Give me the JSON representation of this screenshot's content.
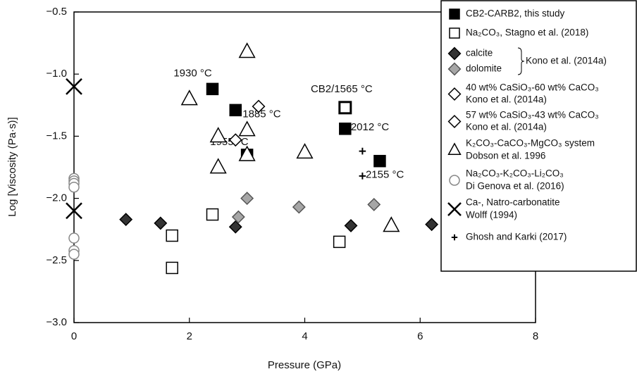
{
  "chart_data": {
    "type": "scatter",
    "x_label": "Pressure (GPa)",
    "y_label": "Log [Viscosity (Pa·s)]",
    "xlim": [
      0,
      8
    ],
    "ylim": [
      -3.0,
      -0.5
    ],
    "xticks": [
      0,
      2,
      4,
      6,
      8
    ],
    "yticks": [
      {
        "value": -3.0,
        "label": "−3.0"
      },
      {
        "value": -2.5,
        "label": "−2.5"
      },
      {
        "value": -2.0,
        "label": "−2.0"
      },
      {
        "value": -1.5,
        "label": "−1.5"
      },
      {
        "value": -1.0,
        "label": "−1.0"
      },
      {
        "value": -0.5,
        "label": "−0.5"
      }
    ],
    "legend_group_label": "Kono et al. (2014a)",
    "series": [
      {
        "name": [
          "CB2-CARB2, this study"
        ],
        "marker": "square",
        "color": "#000000",
        "filled": true,
        "x": [
          2.4,
          2.8,
          3.0,
          4.7,
          5.3,
          4.7
        ],
        "values": [
          -1.12,
          -1.29,
          -1.65,
          -1.44,
          -1.7,
          -1.27
        ],
        "open": [
          false,
          false,
          false,
          false,
          false,
          true
        ],
        "labels": [
          "1930 °C",
          "1885 °C",
          "1955 °C",
          "2012 °C",
          "2155 °C",
          "CB2/1565 °C"
        ]
      },
      {
        "name": [
          "Na₂CO₃, Stagno et al. (2018)"
        ],
        "marker": "square",
        "color": "#000000",
        "filled": false,
        "x": [
          1.7,
          1.7,
          2.4,
          4.6
        ],
        "values": [
          -2.3,
          -2.56,
          -2.13,
          -2.35
        ]
      },
      {
        "name": [
          "calcite"
        ],
        "marker": "diamond",
        "color": "#000000",
        "filled": true,
        "fill": "#333333",
        "group": true,
        "x": [
          0.9,
          1.5,
          2.8,
          4.8,
          6.2
        ],
        "values": [
          -2.17,
          -2.2,
          -2.23,
          -2.22,
          -2.21
        ]
      },
      {
        "name": [
          "dolomite"
        ],
        "marker": "diamond",
        "color": "#555555",
        "filled": true,
        "fill": "#a6a6a6",
        "group": true,
        "x": [
          2.85,
          3.0,
          3.9,
          5.2
        ],
        "values": [
          -2.15,
          -2.0,
          -2.07,
          -2.05
        ]
      },
      {
        "name": [
          "40 wt% CaSiO₃-60 wt% CaCO₃",
          "Kono et al. (2014a)"
        ],
        "marker": "diamond",
        "color": "#000000",
        "filled": false,
        "x": [
          3.2
        ],
        "values": [
          -1.26
        ]
      },
      {
        "name": [
          "57 wt% CaSiO₃-43 wt% CaCO₃",
          "Kono et al. (2014a)"
        ],
        "marker": "diamond",
        "color": "#000000",
        "filled": false,
        "x": [
          2.8
        ],
        "values": [
          -1.53
        ]
      },
      {
        "name": [
          "K₂CO₃-CaCO₃-MgCO₃ system",
          "Dobson et al. 1996"
        ],
        "marker": "triangle",
        "color": "#000000",
        "filled": false,
        "x": [
          3.0,
          2.0,
          2.5,
          2.5,
          3.0,
          3.0,
          4.0,
          5.5
        ],
        "values": [
          -0.82,
          -1.2,
          -1.5,
          -1.75,
          -1.45,
          -1.65,
          -1.63,
          -2.22
        ]
      },
      {
        "name": [
          "Na₂CO₃-K₂CO₃-Li₂CO₃",
          "Di Genova et al. (2016)"
        ],
        "marker": "circle",
        "color": "#888888",
        "filled": false,
        "x": [
          0,
          0,
          0,
          0,
          0,
          0,
          0
        ],
        "values": [
          -1.84,
          -1.86,
          -1.88,
          -1.91,
          -2.32,
          -2.42,
          -2.45
        ]
      },
      {
        "name": [
          "Ca-, Natro-carbonatite",
          "Wolff (1994)"
        ],
        "marker": "x",
        "color": "#000000",
        "filled": false,
        "x": [
          0,
          0
        ],
        "values": [
          -1.1,
          -2.1
        ]
      },
      {
        "name": [
          "Ghosh and Karki (2017)"
        ],
        "marker": "plus",
        "color": "#000000",
        "filled": false,
        "x": [
          5.0,
          5.0
        ],
        "values": [
          -1.62,
          -1.82
        ]
      }
    ]
  }
}
